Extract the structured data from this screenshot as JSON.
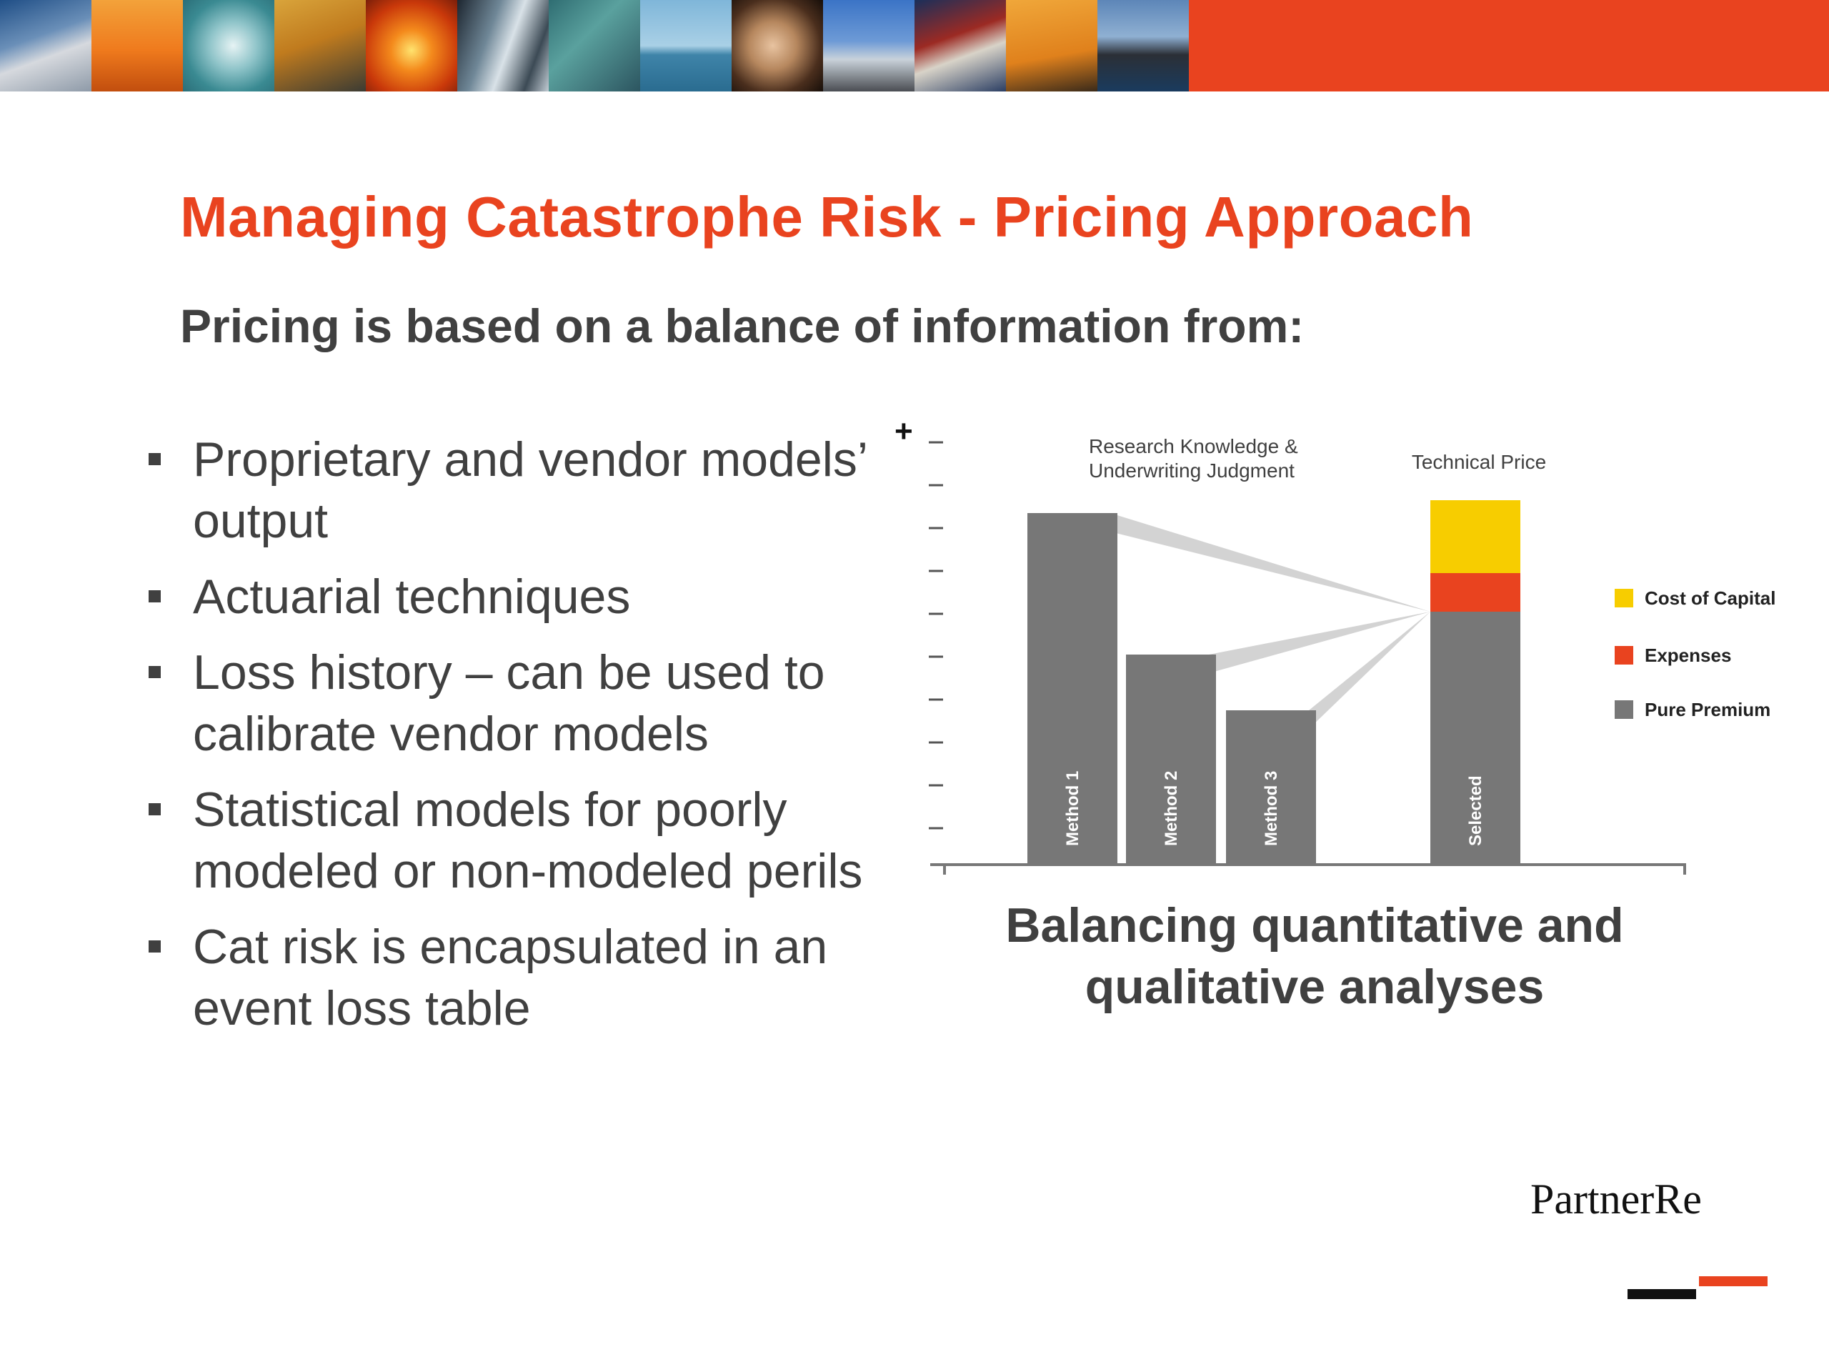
{
  "slide": {
    "title": "Managing Catastrophe Risk - Pricing Approach",
    "subtitle": "Pricing is based on a balance of information from:",
    "bullets": [
      "Proprietary and vendor models’ output",
      "Actuarial techniques",
      "Loss history – can be used to calibrate vendor models",
      "Statistical models for poorly modeled or non-modeled perils",
      "Cat risk is encapsulated in an event loss table"
    ],
    "caption": "Balancing quantitative and qualitative analyses",
    "logo": "PartnerRe",
    "colors": {
      "accent": "#e9431f",
      "text": "#404040",
      "bar": "#777777",
      "yellow": "#f7cd00"
    }
  },
  "chart_data": {
    "type": "bar",
    "categories": [
      "Method 1",
      "Method 2",
      "Method 3",
      "Selected"
    ],
    "series": [
      {
        "name": "Pure Premium",
        "values": [
          8.2,
          4.9,
          3.6,
          5.9
        ],
        "color": "#777777"
      },
      {
        "name": "Expenses",
        "values": [
          0,
          0,
          0,
          0.9
        ],
        "color": "#e9431f"
      },
      {
        "name": "Cost of Capital",
        "values": [
          0,
          0,
          0,
          1.7
        ],
        "color": "#f7cd00"
      }
    ],
    "y_marker": "+",
    "annotations": [
      "Research Knowledge & Underwriting Judgment",
      "Technical Price"
    ],
    "ylim": [
      0,
      10
    ],
    "y_ticks": 10,
    "legend_position": "right",
    "grid": false
  }
}
